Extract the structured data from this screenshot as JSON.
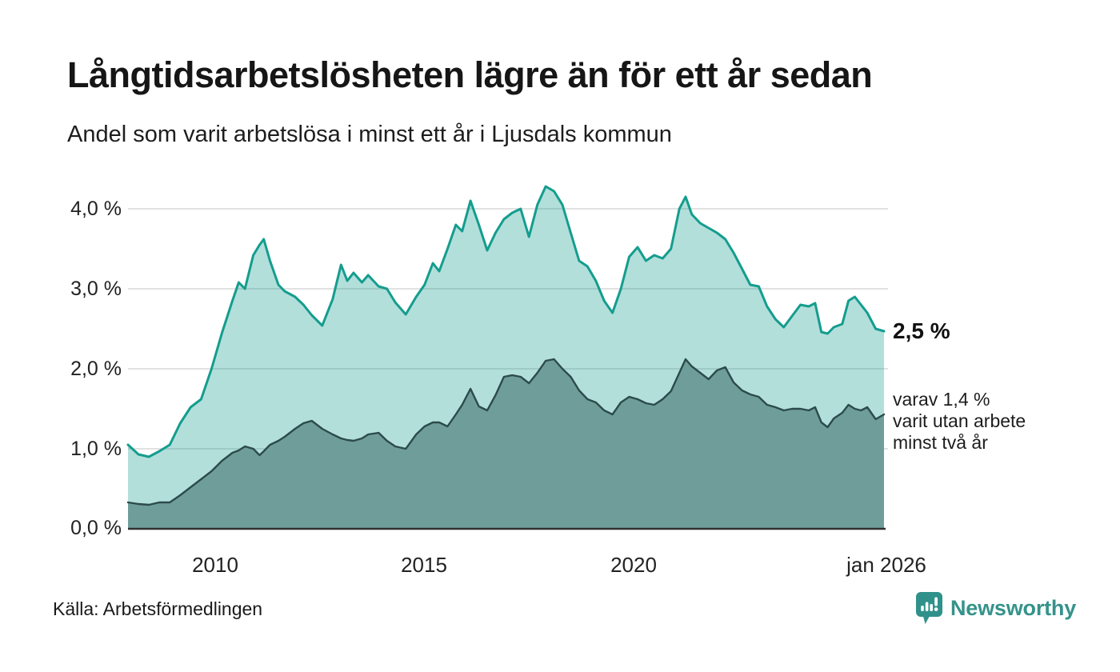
{
  "header": {
    "title": "Långtidsarbetslösheten lägre än för ett år sedan",
    "subtitle": "Andel som varit arbetslösa i minst ett år i Ljusdals kommun"
  },
  "annotations": {
    "latest_value": "2,5 %",
    "sub_lines": [
      "varav 1,4 %",
      "varit utan arbete",
      "minst två år"
    ]
  },
  "footer": {
    "source": "Källa: Arbetsförmedlingen",
    "brand": "Newsworthy",
    "brand_color": "#2f918a",
    "brand_icon": "pin-barchart-icon"
  },
  "chart_data": {
    "type": "area",
    "title": "Långtidsarbetslösheten lägre än för ett år sedan",
    "xlabel": "",
    "ylabel": "",
    "unit": "%",
    "xlim": [
      2007.9,
      2026.0
    ],
    "ylim": [
      0,
      4.0
    ],
    "grid": true,
    "grid_color": "#d8d8d8",
    "axis_color": "#303030",
    "legend_position": "right-end-labels",
    "x_ticks": [
      {
        "t": 2010,
        "label": "2010"
      },
      {
        "t": 2015,
        "label": "2015"
      },
      {
        "t": 2020,
        "label": "2020"
      },
      {
        "t": 2026,
        "label": "jan 2026"
      }
    ],
    "y_ticks": [
      {
        "v": 4,
        "label": "4,0 %"
      },
      {
        "v": 3,
        "label": "3,0 %"
      },
      {
        "v": 2,
        "label": "2,0 %"
      },
      {
        "v": 1,
        "label": "1,0 %"
      },
      {
        "v": 0,
        "label": "0,0 %"
      }
    ],
    "x": [
      2007.9,
      2008.15,
      2008.4,
      2008.65,
      2008.9,
      2009.15,
      2009.4,
      2009.65,
      2009.9,
      2010.15,
      2010.4,
      2010.55,
      2010.7,
      2010.9,
      2011.05,
      2011.15,
      2011.3,
      2011.5,
      2011.65,
      2011.9,
      2012.1,
      2012.3,
      2012.55,
      2012.8,
      2013.0,
      2013.15,
      2013.3,
      2013.5,
      2013.65,
      2013.9,
      2014.1,
      2014.3,
      2014.55,
      2014.8,
      2015.0,
      2015.2,
      2015.35,
      2015.55,
      2015.75,
      2015.9,
      2016.1,
      2016.3,
      2016.5,
      2016.7,
      2016.9,
      2017.1,
      2017.3,
      2017.5,
      2017.7,
      2017.9,
      2018.1,
      2018.3,
      2018.5,
      2018.7,
      2018.9,
      2019.1,
      2019.3,
      2019.5,
      2019.7,
      2019.9,
      2020.1,
      2020.3,
      2020.5,
      2020.7,
      2020.9,
      2021.1,
      2021.25,
      2021.4,
      2021.6,
      2021.8,
      2022.0,
      2022.2,
      2022.4,
      2022.6,
      2022.8,
      2023.0,
      2023.2,
      2023.4,
      2023.6,
      2023.8,
      2024.0,
      2024.2,
      2024.35,
      2024.5,
      2024.65,
      2024.8,
      2025.0,
      2025.15,
      2025.3,
      2025.45,
      2025.6,
      2025.8,
      2026.0
    ],
    "series": [
      {
        "name": "Andel arbetslösa minst ett år",
        "end_label": "2,5 %",
        "latest": 2.5,
        "stroke": "#149d8e",
        "stroke_width": 3,
        "fill": "#149d8e",
        "fill_opacity": 0.32,
        "values": [
          1.05,
          0.93,
          0.9,
          0.97,
          1.05,
          1.32,
          1.52,
          1.62,
          2.0,
          2.45,
          2.85,
          3.08,
          3.0,
          3.42,
          3.55,
          3.62,
          3.35,
          3.05,
          2.97,
          2.9,
          2.8,
          2.67,
          2.54,
          2.87,
          3.3,
          3.1,
          3.2,
          3.08,
          3.17,
          3.03,
          3.0,
          2.83,
          2.68,
          2.9,
          3.05,
          3.32,
          3.22,
          3.5,
          3.8,
          3.72,
          4.1,
          3.8,
          3.48,
          3.7,
          3.87,
          3.95,
          4.0,
          3.65,
          4.05,
          4.28,
          4.22,
          4.05,
          3.7,
          3.35,
          3.28,
          3.1,
          2.85,
          2.7,
          3.0,
          3.4,
          3.52,
          3.35,
          3.42,
          3.38,
          3.5,
          4.0,
          4.15,
          3.93,
          3.82,
          3.76,
          3.7,
          3.62,
          3.45,
          3.25,
          3.05,
          3.03,
          2.78,
          2.62,
          2.52,
          2.66,
          2.8,
          2.78,
          2.82,
          2.46,
          2.44,
          2.52,
          2.56,
          2.85,
          2.9,
          2.8,
          2.7,
          2.5,
          2.47
        ]
      },
      {
        "name": "varav utan arbete minst två år",
        "end_label": "varav 1,4 % varit utan arbete minst två år",
        "latest": 1.4,
        "stroke": "#2c4b4b",
        "stroke_width": 2.4,
        "fill": "#6f9e9a",
        "fill_opacity": 1,
        "values": [
          0.33,
          0.31,
          0.3,
          0.33,
          0.33,
          0.42,
          0.52,
          0.62,
          0.72,
          0.85,
          0.95,
          0.98,
          1.03,
          1.0,
          0.92,
          0.97,
          1.05,
          1.1,
          1.15,
          1.25,
          1.32,
          1.35,
          1.25,
          1.18,
          1.13,
          1.11,
          1.1,
          1.13,
          1.18,
          1.2,
          1.1,
          1.03,
          1.0,
          1.18,
          1.28,
          1.33,
          1.33,
          1.28,
          1.43,
          1.55,
          1.75,
          1.53,
          1.48,
          1.67,
          1.9,
          1.92,
          1.9,
          1.82,
          1.95,
          2.1,
          2.12,
          2.0,
          1.9,
          1.73,
          1.62,
          1.58,
          1.48,
          1.43,
          1.58,
          1.65,
          1.62,
          1.57,
          1.55,
          1.62,
          1.72,
          1.95,
          2.12,
          2.03,
          1.95,
          1.87,
          1.98,
          2.02,
          1.83,
          1.73,
          1.68,
          1.65,
          1.55,
          1.52,
          1.48,
          1.5,
          1.5,
          1.48,
          1.52,
          1.33,
          1.27,
          1.38,
          1.45,
          1.55,
          1.5,
          1.48,
          1.52,
          1.37,
          1.43
        ]
      }
    ]
  }
}
